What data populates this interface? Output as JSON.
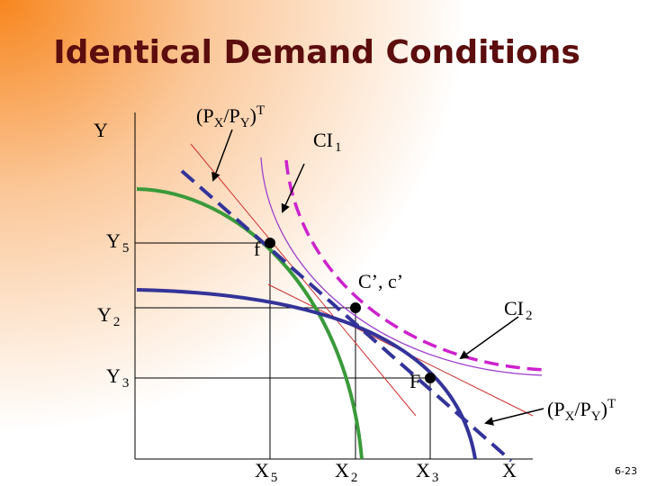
{
  "title": "Identical Demand Conditions",
  "labels": {
    "y_axis": [
      "Y"
    ],
    "price_ratio_top": [
      "(P",
      "X",
      "/P",
      "Y",
      ")",
      "T"
    ],
    "ci1": [
      "CI",
      "1"
    ],
    "y5": [
      "Y",
      "5"
    ],
    "f_lower": [
      "f"
    ],
    "c_prime": [
      "C’, c’"
    ],
    "ci2": [
      "CI",
      "2"
    ],
    "y2": [
      "Y",
      "2"
    ],
    "y3": [
      "Y",
      "3"
    ],
    "f_upper": [
      "F"
    ],
    "price_ratio_bottom": [
      "(P",
      "X",
      "/P",
      "Y",
      ")",
      "T"
    ],
    "x5": [
      "X",
      "5"
    ],
    "x2": [
      "X",
      "2"
    ],
    "x3": [
      "X",
      "3"
    ],
    "x_axis": [
      "X"
    ]
  },
  "page_number": "6-23"
}
